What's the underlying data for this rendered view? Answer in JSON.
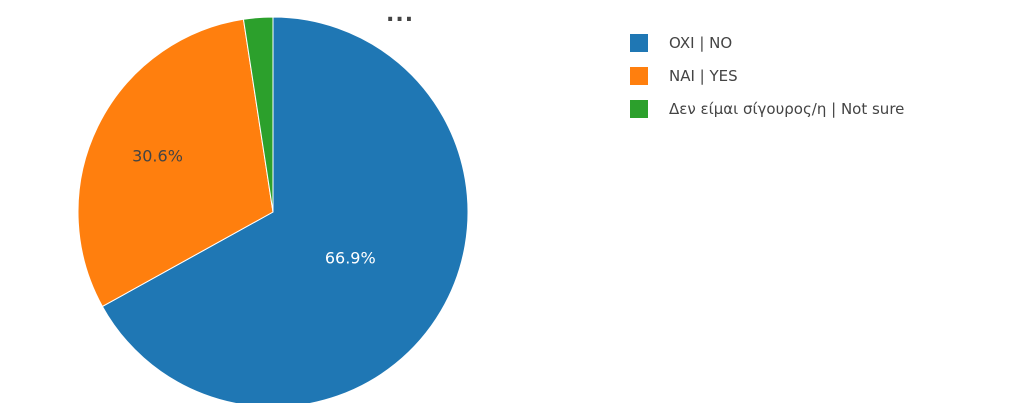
{
  "title_ellipsis": "...",
  "chart_data": {
    "type": "pie",
    "title": "",
    "slices": [
      {
        "label": "OXI | NO",
        "value": 66.9,
        "display": "66.9%",
        "color": "#1f77b4"
      },
      {
        "label": "NAI | YES",
        "value": 30.6,
        "display": "30.6%",
        "color": "#ff7f0e"
      },
      {
        "label": "Δεν είμαι σίγουρος/η | Not sure",
        "value": 2.42,
        "display": "2.42%",
        "color": "#2ca02c"
      }
    ],
    "legend_position": "top-right",
    "start": "top",
    "direction": "clockwise"
  }
}
